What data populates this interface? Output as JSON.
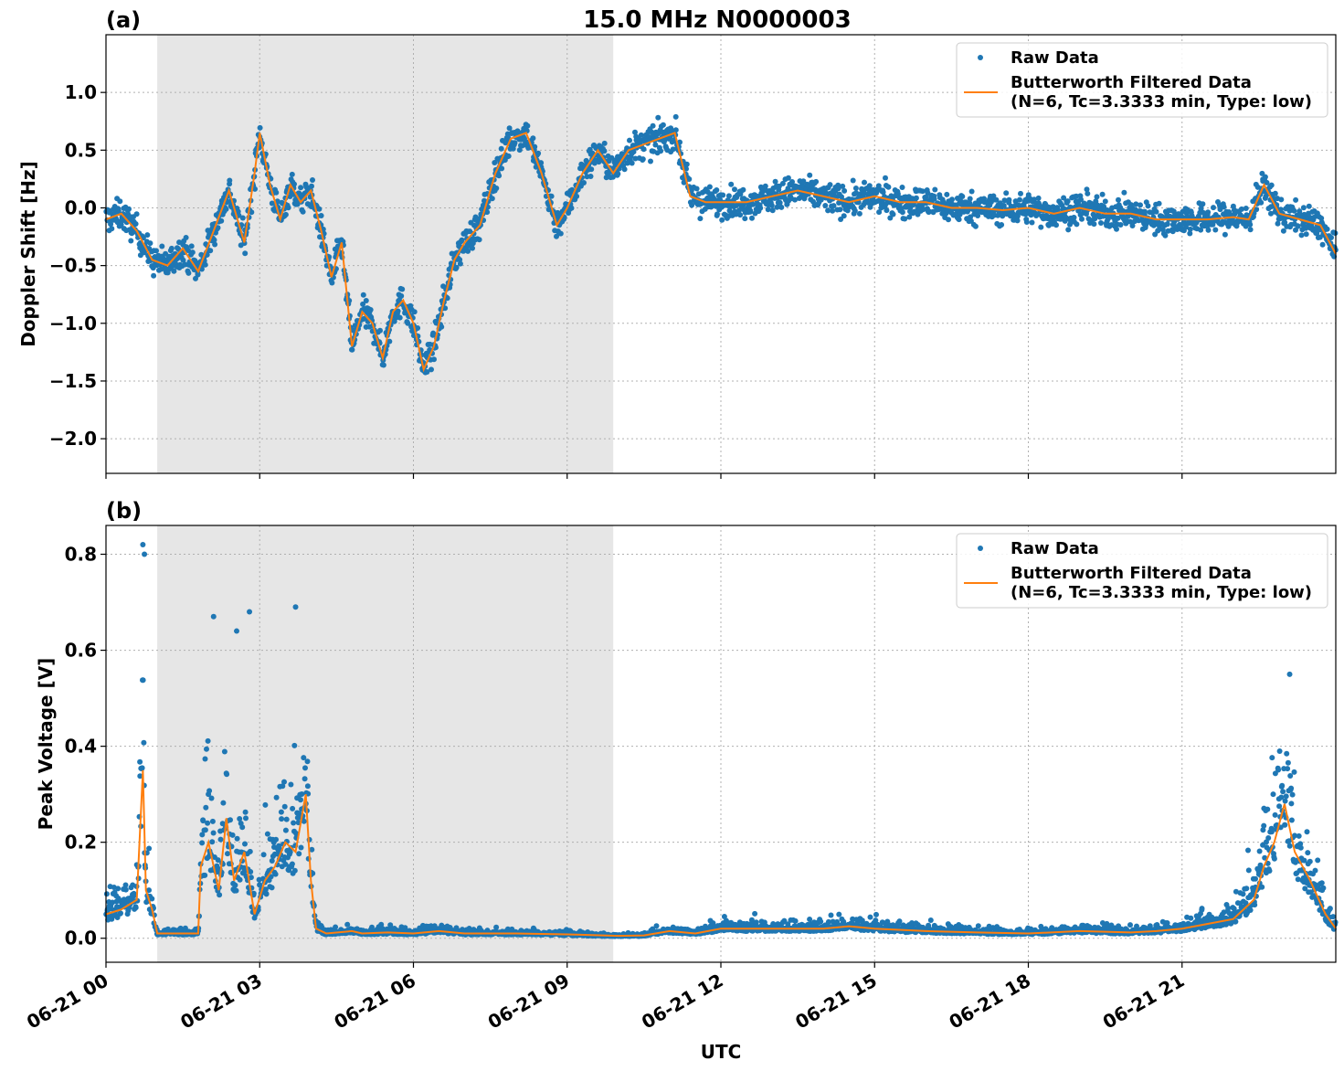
{
  "title": "15.0 MHz N0000003",
  "xlabel": "UTC",
  "x_ticks": [
    "06-21 00",
    "06-21 03",
    "06-21 06",
    "06-21 09",
    "06-21 12",
    "06-21 15",
    "06-21 18",
    "06-21 21"
  ],
  "colors": {
    "raw": "#1f77b4",
    "filtered": "#ff7f0e",
    "shade": "#e6e6e6",
    "grid": "#b0b0b0"
  },
  "shaded_interval_hours": [
    1.0,
    9.9
  ],
  "legend": {
    "raw_label": "Raw Data",
    "filtered_label_line1": "Butterworth Filtered Data",
    "filtered_label_line2": "(N=6, Tc=3.3333 min, Type: low)"
  },
  "chart_data": [
    {
      "type": "scatter",
      "panel_label": "(a)",
      "ylabel": "Doppler Shift [Hz]",
      "xlim_hours": [
        0,
        24
      ],
      "ylim": [
        -2.3,
        1.5
      ],
      "y_ticks": [
        "1.0",
        "0.5",
        "0.0",
        "−0.5",
        "−1.0",
        "−1.5",
        "−2.0"
      ],
      "y_tick_values": [
        1.0,
        0.5,
        0.0,
        -0.5,
        -1.0,
        -1.5,
        -2.0
      ],
      "series": [
        {
          "name": "Butterworth Filtered Data",
          "x_hours": [
            0,
            0.3,
            0.6,
            0.9,
            1.2,
            1.5,
            1.8,
            2.1,
            2.4,
            2.7,
            2.9,
            3.0,
            3.2,
            3.4,
            3.6,
            3.8,
            4.0,
            4.2,
            4.4,
            4.6,
            4.8,
            5.0,
            5.2,
            5.4,
            5.6,
            5.8,
            6.0,
            6.2,
            6.4,
            6.6,
            6.8,
            7.0,
            7.3,
            7.6,
            7.9,
            8.2,
            8.5,
            8.8,
            9.0,
            9.3,
            9.6,
            9.9,
            10.2,
            10.5,
            10.8,
            11.1,
            11.4,
            11.7,
            12.0,
            12.5,
            13.0,
            13.5,
            14.0,
            14.5,
            15.0,
            15.5,
            16.0,
            16.5,
            17.0,
            17.5,
            18.0,
            18.5,
            19.0,
            19.5,
            20.0,
            20.5,
            21.0,
            21.5,
            22.0,
            22.3,
            22.6,
            22.9,
            23.3,
            23.7,
            24.0
          ],
          "y": [
            -0.1,
            -0.05,
            -0.2,
            -0.45,
            -0.5,
            -0.35,
            -0.55,
            -0.2,
            0.15,
            -0.3,
            0.3,
            0.65,
            0.2,
            -0.1,
            0.2,
            0.05,
            0.15,
            -0.2,
            -0.6,
            -0.3,
            -1.2,
            -0.9,
            -1.0,
            -1.3,
            -0.9,
            -0.8,
            -1.0,
            -1.4,
            -1.2,
            -0.8,
            -0.45,
            -0.3,
            -0.15,
            0.3,
            0.6,
            0.65,
            0.3,
            -0.15,
            0.0,
            0.3,
            0.5,
            0.3,
            0.5,
            0.55,
            0.6,
            0.65,
            0.1,
            0.05,
            0.05,
            0.05,
            0.1,
            0.15,
            0.1,
            0.05,
            0.1,
            0.05,
            0.05,
            0.0,
            0.0,
            -0.02,
            0.0,
            -0.05,
            0.0,
            -0.05,
            -0.05,
            -0.1,
            -0.1,
            -0.1,
            -0.08,
            -0.1,
            0.2,
            -0.05,
            -0.1,
            -0.15,
            -0.4
          ]
        }
      ]
    },
    {
      "type": "scatter",
      "panel_label": "(b)",
      "ylabel": "Peak Voltage [V]",
      "xlim_hours": [
        0,
        24
      ],
      "ylim": [
        -0.05,
        0.86
      ],
      "y_ticks": [
        "0.8",
        "0.6",
        "0.4",
        "0.2",
        "0.0"
      ],
      "y_tick_values": [
        0.8,
        0.6,
        0.4,
        0.2,
        0.0
      ],
      "series": [
        {
          "name": "Butterworth Filtered Data",
          "x_hours": [
            0,
            0.3,
            0.6,
            0.72,
            0.78,
            0.9,
            1.0,
            1.2,
            1.5,
            1.8,
            1.85,
            2.0,
            2.2,
            2.35,
            2.5,
            2.7,
            2.9,
            3.1,
            3.3,
            3.5,
            3.7,
            3.9,
            4.0,
            4.1,
            4.3,
            4.8,
            5.0,
            5.5,
            6.0,
            6.5,
            7.0,
            8.0,
            9.0,
            10.0,
            10.5,
            11.0,
            11.5,
            12.0,
            13.0,
            14.0,
            14.5,
            15.0,
            16.0,
            17.0,
            18.0,
            19.0,
            20.0,
            20.5,
            21.0,
            21.5,
            22.0,
            22.4,
            22.6,
            22.8,
            23.0,
            23.2,
            23.5,
            23.8,
            24.0
          ],
          "y": [
            0.05,
            0.06,
            0.08,
            0.35,
            0.1,
            0.06,
            0.01,
            0.01,
            0.01,
            0.01,
            0.15,
            0.2,
            0.1,
            0.25,
            0.12,
            0.18,
            0.05,
            0.12,
            0.15,
            0.2,
            0.18,
            0.3,
            0.12,
            0.02,
            0.01,
            0.015,
            0.01,
            0.012,
            0.01,
            0.015,
            0.01,
            0.01,
            0.008,
            0.005,
            0.006,
            0.015,
            0.01,
            0.02,
            0.02,
            0.02,
            0.025,
            0.02,
            0.015,
            0.012,
            0.01,
            0.015,
            0.012,
            0.015,
            0.02,
            0.03,
            0.04,
            0.08,
            0.15,
            0.2,
            0.28,
            0.18,
            0.12,
            0.05,
            0.02
          ]
        },
        {
          "name": "Raw Data",
          "x_hours": [
            0.72,
            0.75,
            2.1,
            2.55,
            2.8,
            3.7,
            23.1
          ],
          "y": [
            0.82,
            0.8,
            0.67,
            0.64,
            0.68,
            0.69,
            0.55
          ]
        }
      ]
    }
  ]
}
